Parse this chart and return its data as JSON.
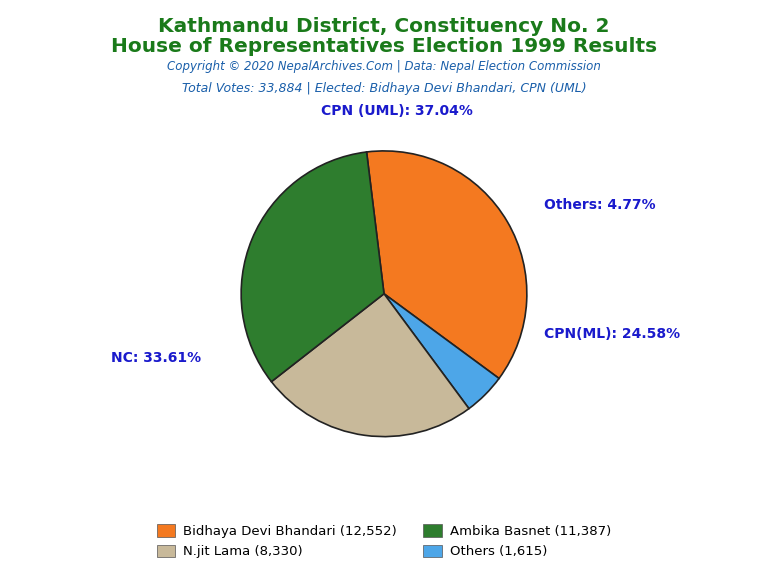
{
  "title_line1": "Kathmandu District, Constituency No. 2",
  "title_line2": "House of Representatives Election 1999 Results",
  "title_color": "#1a7a1a",
  "copyright_text": "Copyright © 2020 NepalArchives.Com | Data: Nepal Election Commission",
  "copyright_color": "#1a5faa",
  "subtitle_text": "Total Votes: 33,884 | Elected: Bidhaya Devi Bhandari, CPN (UML)",
  "subtitle_color": "#1a5faa",
  "slices": [
    {
      "label": "CPN (UML)",
      "value": 12552,
      "pct": 37.04,
      "color": "#f47920"
    },
    {
      "label": "Others",
      "value": 1615,
      "pct": 4.77,
      "color": "#4da6e8"
    },
    {
      "label": "CPN(ML)",
      "value": 8330,
      "pct": 24.58,
      "color": "#c8b99a"
    },
    {
      "label": "NC",
      "value": 11387,
      "pct": 33.61,
      "color": "#2e7d2e"
    }
  ],
  "label_color": "#1a1acc",
  "legend_entries": [
    {
      "text": "Bidhaya Devi Bhandari (12,552)",
      "color": "#f47920"
    },
    {
      "text": "Ambika Basnet (11,387)",
      "color": "#2e7d2e"
    },
    {
      "text": "N.jit Lama (8,330)",
      "color": "#c8b99a"
    },
    {
      "text": "Others (1,615)",
      "color": "#4da6e8"
    }
  ],
  "background_color": "#ffffff",
  "startangle": 97
}
